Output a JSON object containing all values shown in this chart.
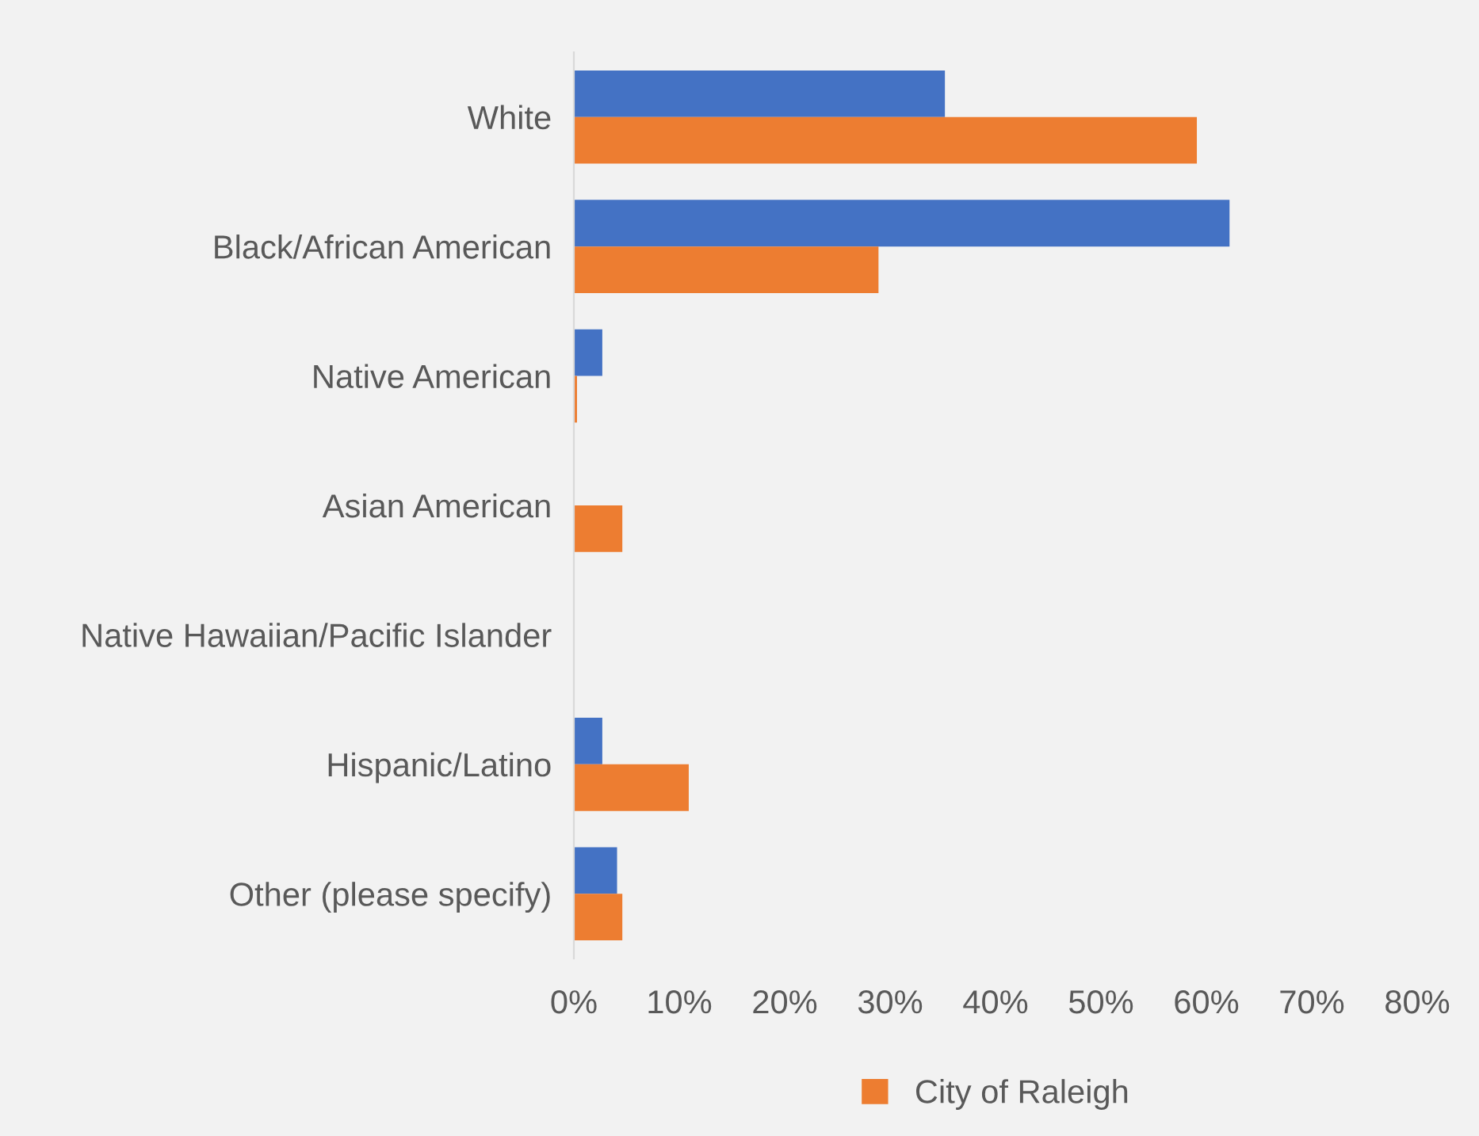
{
  "chart_data": {
    "type": "bar",
    "orientation": "horizontal",
    "categories": [
      "White",
      "Black/African American",
      "Native American",
      "Asian American",
      "Native Hawaiian/Pacific Islander",
      "Hispanic/Latino",
      "Other (please specify)"
    ],
    "series": [
      {
        "color": "#4472c4",
        "values": [
          35.2,
          62.2,
          2.7,
          0,
          0,
          2.7,
          4.1
        ]
      },
      {
        "name": "City of Raleigh",
        "color": "#ed7d31",
        "values": [
          59.1,
          28.9,
          0.3,
          4.6,
          null,
          10.9,
          4.6
        ]
      }
    ],
    "xlim": [
      0,
      80
    ],
    "xticks": [
      {
        "value": 0,
        "label": "0%"
      },
      {
        "value": 10,
        "label": "10%"
      },
      {
        "value": 20,
        "label": "20%"
      },
      {
        "value": 30,
        "label": "30%"
      },
      {
        "value": 40,
        "label": "40%"
      },
      {
        "value": 50,
        "label": "50%"
      },
      {
        "value": 60,
        "label": "60%"
      },
      {
        "value": 70,
        "label": "70%"
      },
      {
        "value": 80,
        "label": "80%"
      }
    ],
    "grid": false,
    "legend": "bottom"
  }
}
